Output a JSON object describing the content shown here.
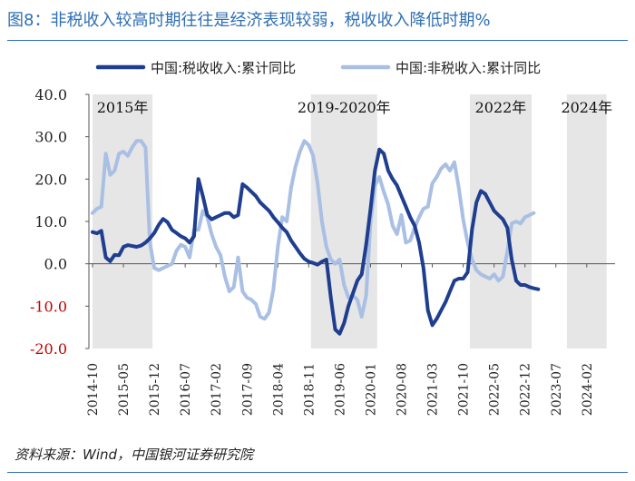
{
  "title": "图8：非税收入较高时期往往是经济表现较弱，税收收入降低时期%",
  "source": "资料来源：Wind，中国银河证券研究院",
  "chart_data": {
    "type": "line",
    "ylim": [
      -20,
      40
    ],
    "yticks": [
      {
        "value": 40,
        "label": "40.0"
      },
      {
        "value": 30,
        "label": "30.0"
      },
      {
        "value": 20,
        "label": "20.0"
      },
      {
        "value": 10,
        "label": "10.0"
      },
      {
        "value": 0,
        "label": "0.0"
      },
      {
        "value": -10,
        "label": "-10.0"
      },
      {
        "value": -20,
        "label": "-20.0"
      }
    ],
    "x_start": 0,
    "x_end": 118,
    "xticks": [
      {
        "t": 0,
        "label": "2014-10"
      },
      {
        "t": 7,
        "label": "2015-05"
      },
      {
        "t": 14,
        "label": "2015-12"
      },
      {
        "t": 21,
        "label": "2016-07"
      },
      {
        "t": 28,
        "label": "2017-02"
      },
      {
        "t": 35,
        "label": "2017-09"
      },
      {
        "t": 42,
        "label": "2018-04"
      },
      {
        "t": 49,
        "label": "2018-11"
      },
      {
        "t": 56,
        "label": "2019-06"
      },
      {
        "t": 63,
        "label": "2020-01"
      },
      {
        "t": 70,
        "label": "2020-08"
      },
      {
        "t": 77,
        "label": "2021-03"
      },
      {
        "t": 84,
        "label": "2021-10"
      },
      {
        "t": 91,
        "label": "2022-05"
      },
      {
        "t": 98,
        "label": "2022-12"
      },
      {
        "t": 105,
        "label": "2023-07"
      },
      {
        "t": 112,
        "label": "2024-02"
      }
    ],
    "shaded_periods": [
      {
        "label": "2015年",
        "start": 0,
        "end": 13.6
      },
      {
        "label": "2019-2020年",
        "start": 49.5,
        "end": 64.5
      },
      {
        "label": "2022年",
        "start": 85.5,
        "end": 99.5
      },
      {
        "label": "2024年",
        "start": 107.5,
        "end": 116.5
      }
    ],
    "series": [
      {
        "name": "中国:税收收入:累计同比",
        "color": "#1f3e8f",
        "points": [
          [
            0,
            7.5
          ],
          [
            1,
            7.2
          ],
          [
            2,
            7.8
          ],
          [
            3,
            1.5
          ],
          [
            4,
            0.6
          ],
          [
            5,
            2.1
          ],
          [
            6,
            2.0
          ],
          [
            7,
            4.0
          ],
          [
            8,
            4.4
          ],
          [
            9,
            4.2
          ],
          [
            10,
            4.0
          ],
          [
            11,
            4.3
          ],
          [
            12,
            5.0
          ],
          [
            13,
            6.0
          ],
          [
            14,
            7.3
          ],
          [
            15,
            9.2
          ],
          [
            16,
            10.6
          ],
          [
            17,
            9.8
          ],
          [
            18,
            8.0
          ],
          [
            19,
            7.3
          ],
          [
            20,
            6.5
          ],
          [
            21,
            6.0
          ],
          [
            22,
            5.0
          ],
          [
            23,
            6.5
          ],
          [
            24,
            20.0
          ],
          [
            25,
            16.0
          ],
          [
            26,
            11.5
          ],
          [
            27,
            10.5
          ],
          [
            28,
            11.0
          ],
          [
            29,
            11.5
          ],
          [
            30,
            12.0
          ],
          [
            31,
            12.0
          ],
          [
            32,
            11.0
          ],
          [
            33,
            11.5
          ],
          [
            34,
            18.8
          ],
          [
            35,
            18.0
          ],
          [
            36,
            17.0
          ],
          [
            37,
            16.0
          ],
          [
            38,
            14.5
          ],
          [
            39,
            13.5
          ],
          [
            40,
            12.5
          ],
          [
            41,
            11.0
          ],
          [
            42,
            9.8
          ],
          [
            43,
            8.5
          ],
          [
            44,
            7.5
          ],
          [
            45,
            5.5
          ],
          [
            46,
            4.0
          ],
          [
            47,
            2.5
          ],
          [
            48,
            1.2
          ],
          [
            49,
            0.5
          ],
          [
            50,
            0.2
          ],
          [
            51,
            -0.2
          ],
          [
            52,
            0.5
          ],
          [
            53,
            1.0
          ],
          [
            54,
            -8.0
          ],
          [
            55,
            -15.5
          ],
          [
            56,
            -16.5
          ],
          [
            57,
            -14.0
          ],
          [
            58,
            -10.0
          ],
          [
            59,
            -7.0
          ],
          [
            60,
            -4.0
          ],
          [
            61,
            -2.5
          ],
          [
            62,
            4.5
          ],
          [
            63,
            13.0
          ],
          [
            64,
            22.0
          ],
          [
            65,
            27.0
          ],
          [
            66,
            26.0
          ],
          [
            67,
            22.0
          ],
          [
            68,
            20.0
          ],
          [
            69,
            18.5
          ],
          [
            70,
            16.0
          ],
          [
            71,
            13.5
          ],
          [
            72,
            11.0
          ],
          [
            73,
            9.0
          ],
          [
            74,
            5.0
          ],
          [
            75,
            -1.0
          ],
          [
            76,
            -11.0
          ],
          [
            77,
            -14.5
          ],
          [
            78,
            -13.0
          ],
          [
            79,
            -11.0
          ],
          [
            80,
            -9.0
          ],
          [
            81,
            -6.5
          ],
          [
            82,
            -4.0
          ],
          [
            83,
            -3.5
          ],
          [
            84,
            -3.5
          ],
          [
            85,
            -2.0
          ],
          [
            86,
            8.0
          ],
          [
            87,
            14.5
          ],
          [
            88,
            17.2
          ],
          [
            89,
            16.5
          ],
          [
            90,
            14.5
          ],
          [
            91,
            12.5
          ],
          [
            92,
            11.5
          ],
          [
            93,
            10.5
          ],
          [
            94,
            8.5
          ],
          [
            95,
            1.0
          ],
          [
            96,
            -4.0
          ],
          [
            97,
            -5.0
          ],
          [
            98,
            -5.0
          ],
          [
            99,
            -5.5
          ],
          [
            100,
            -5.8
          ],
          [
            101,
            -6.0
          ]
        ]
      },
      {
        "name": "中国:非税收入:累计同比",
        "color": "#a9bfe4",
        "points": [
          [
            0,
            12.0
          ],
          [
            1,
            13.0
          ],
          [
            2,
            13.5
          ],
          [
            3,
            26.0
          ],
          [
            4,
            21.0
          ],
          [
            5,
            22.0
          ],
          [
            6,
            26.0
          ],
          [
            7,
            26.5
          ],
          [
            8,
            25.5
          ],
          [
            9,
            27.5
          ],
          [
            10,
            29.0
          ],
          [
            11,
            29.0
          ],
          [
            12,
            27.5
          ],
          [
            13,
            5.0
          ],
          [
            14,
            -1.0
          ],
          [
            15,
            -1.5
          ],
          [
            16,
            -1.0
          ],
          [
            17,
            -0.5
          ],
          [
            18,
            0.0
          ],
          [
            19,
            3.0
          ],
          [
            20,
            4.5
          ],
          [
            21,
            4.0
          ],
          [
            22,
            1.5
          ],
          [
            23,
            8.0
          ],
          [
            24,
            8.0
          ],
          [
            25,
            12.5
          ],
          [
            26,
            11.0
          ],
          [
            27,
            7.0
          ],
          [
            28,
            4.0
          ],
          [
            29,
            2.0
          ],
          [
            30,
            -3.0
          ],
          [
            31,
            -6.5
          ],
          [
            32,
            -5.5
          ],
          [
            33,
            1.5
          ],
          [
            34,
            -6.5
          ],
          [
            35,
            -8.0
          ],
          [
            36,
            -8.5
          ],
          [
            37,
            -9.5
          ],
          [
            38,
            -12.5
          ],
          [
            39,
            -13.0
          ],
          [
            40,
            -11.5
          ],
          [
            41,
            -6.0
          ],
          [
            42,
            4.0
          ],
          [
            43,
            11.0
          ],
          [
            44,
            10.0
          ],
          [
            45,
            18.0
          ],
          [
            46,
            23.0
          ],
          [
            47,
            26.5
          ],
          [
            48,
            29.0
          ],
          [
            49,
            28.0
          ],
          [
            50,
            25.5
          ],
          [
            51,
            19.0
          ],
          [
            52,
            10.0
          ],
          [
            53,
            4.0
          ],
          [
            54,
            1.0
          ],
          [
            55,
            0.0
          ],
          [
            56,
            1.0
          ],
          [
            57,
            -5.0
          ],
          [
            58,
            -8.0
          ],
          [
            59,
            -7.5
          ],
          [
            60,
            -8.5
          ],
          [
            61,
            -12.5
          ],
          [
            62,
            -7.5
          ],
          [
            63,
            10.0
          ],
          [
            64,
            18.5
          ],
          [
            65,
            20.5
          ],
          [
            66,
            17.0
          ],
          [
            67,
            14.0
          ],
          [
            68,
            9.0
          ],
          [
            69,
            7.0
          ],
          [
            70,
            11.5
          ],
          [
            71,
            5.0
          ],
          [
            72,
            5.5
          ],
          [
            73,
            8.5
          ],
          [
            74,
            11.0
          ],
          [
            75,
            13.0
          ],
          [
            76,
            13.5
          ],
          [
            77,
            19.0
          ],
          [
            78,
            20.5
          ],
          [
            79,
            22.5
          ],
          [
            80,
            23.5
          ],
          [
            81,
            22.0
          ],
          [
            82,
            24.0
          ],
          [
            83,
            18.0
          ],
          [
            84,
            10.5
          ],
          [
            85,
            5.0
          ],
          [
            86,
            1.0
          ],
          [
            87,
            -1.5
          ],
          [
            88,
            -2.5
          ],
          [
            89,
            -3.0
          ],
          [
            90,
            -3.5
          ],
          [
            91,
            -2.5
          ],
          [
            92,
            -4.0
          ],
          [
            93,
            -3.0
          ],
          [
            94,
            3.0
          ],
          [
            95,
            9.5
          ],
          [
            96,
            10.0
          ],
          [
            97,
            9.5
          ],
          [
            98,
            11.0
          ],
          [
            99,
            11.5
          ],
          [
            100,
            12.0
          ]
        ]
      }
    ]
  }
}
